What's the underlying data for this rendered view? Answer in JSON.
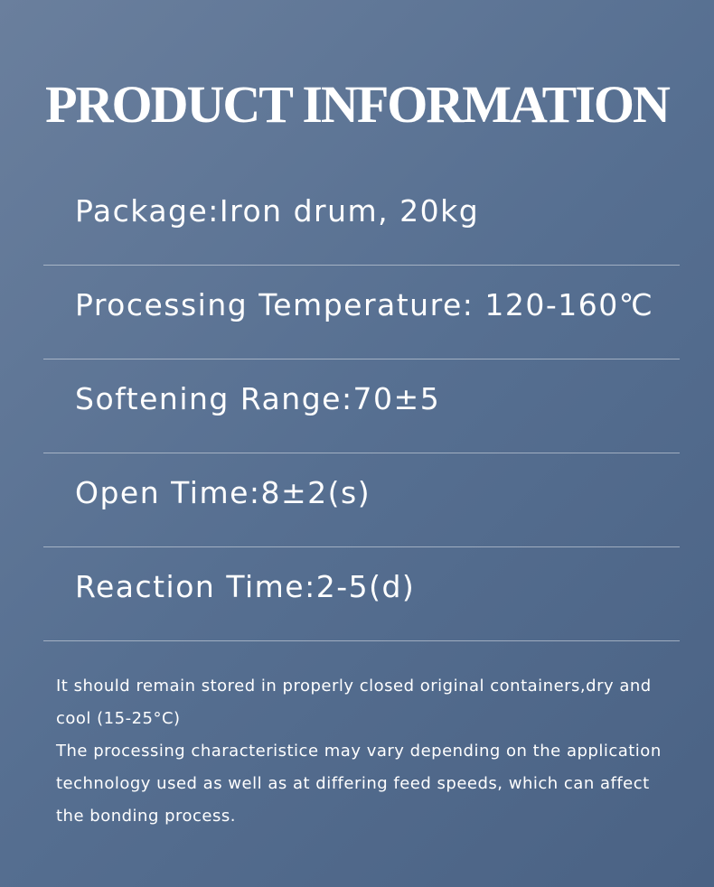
{
  "title": "PRODUCT INFORMATION",
  "items": [
    "Package:Iron drum, 20kg",
    "Processing Temperature: 120-160℃",
    "Softening Range:70±5",
    "Open Time:8±2(s)",
    "Reaction Time:2-5(d)"
  ],
  "notes": [
    "It should remain stored in properly closed original containers,dry and cool (15-25°C)",
    "The processing characteristice may vary depending on the application technology used as well as at differing feed speeds, which can affect the bonding process."
  ]
}
